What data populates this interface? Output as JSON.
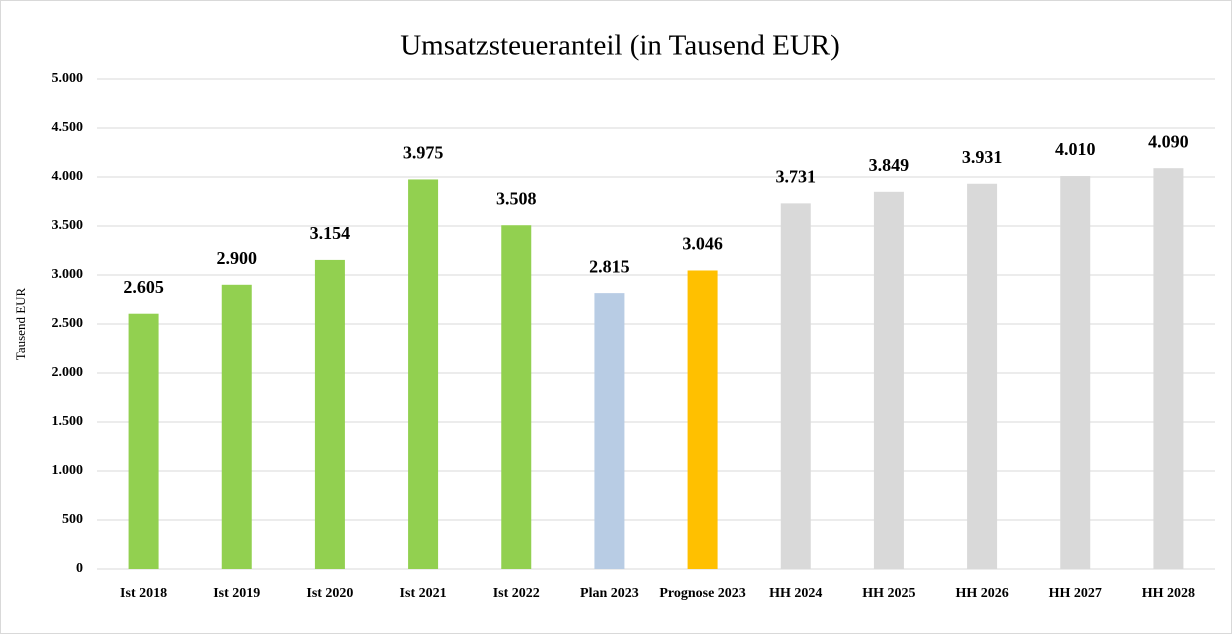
{
  "chart_data": {
    "type": "bar",
    "title": "Umsatzsteueranteil (in Tausend EUR)",
    "y_label": "Tausend EUR",
    "categories": [
      "Ist 2018",
      "Ist 2019",
      "Ist 2020",
      "Ist 2021",
      "Ist 2022",
      "Plan 2023",
      "Prognose 2023",
      "HH 2024",
      "HH 2025",
      "HH 2026",
      "HH 2027",
      "HH 2028"
    ],
    "values": [
      2605,
      2900,
      3154,
      3975,
      3508,
      2815,
      3046,
      3731,
      3849,
      3931,
      4010,
      4090
    ],
    "value_labels": [
      "2.605",
      "2.900",
      "3.154",
      "3.975",
      "3.508",
      "2.815",
      "3.046",
      "3.731",
      "3.849",
      "3.931",
      "4.010",
      "4.090"
    ],
    "colors": [
      "#92d050",
      "#92d050",
      "#92d050",
      "#92d050",
      "#92d050",
      "#b8cce4",
      "#ffc000",
      "#d9d9d9",
      "#d9d9d9",
      "#d9d9d9",
      "#d9d9d9",
      "#d9d9d9"
    ],
    "ylim": [
      0,
      5000
    ],
    "yticks": [
      0,
      500,
      {
        "value": 1000,
        "label": "1.000"
      },
      {
        "value": 1500,
        "label": "1.500"
      },
      {
        "value": 2000,
        "label": "2.000"
      },
      {
        "value": 2500,
        "label": "2.500"
      },
      {
        "value": 3000,
        "label": "3.000"
      },
      {
        "value": 3500,
        "label": "3.500"
      },
      {
        "value": 4000,
        "label": "4.000"
      },
      {
        "value": 4500,
        "label": "4.500"
      },
      {
        "value": 5000,
        "label": "5.000"
      }
    ],
    "grid": true
  }
}
